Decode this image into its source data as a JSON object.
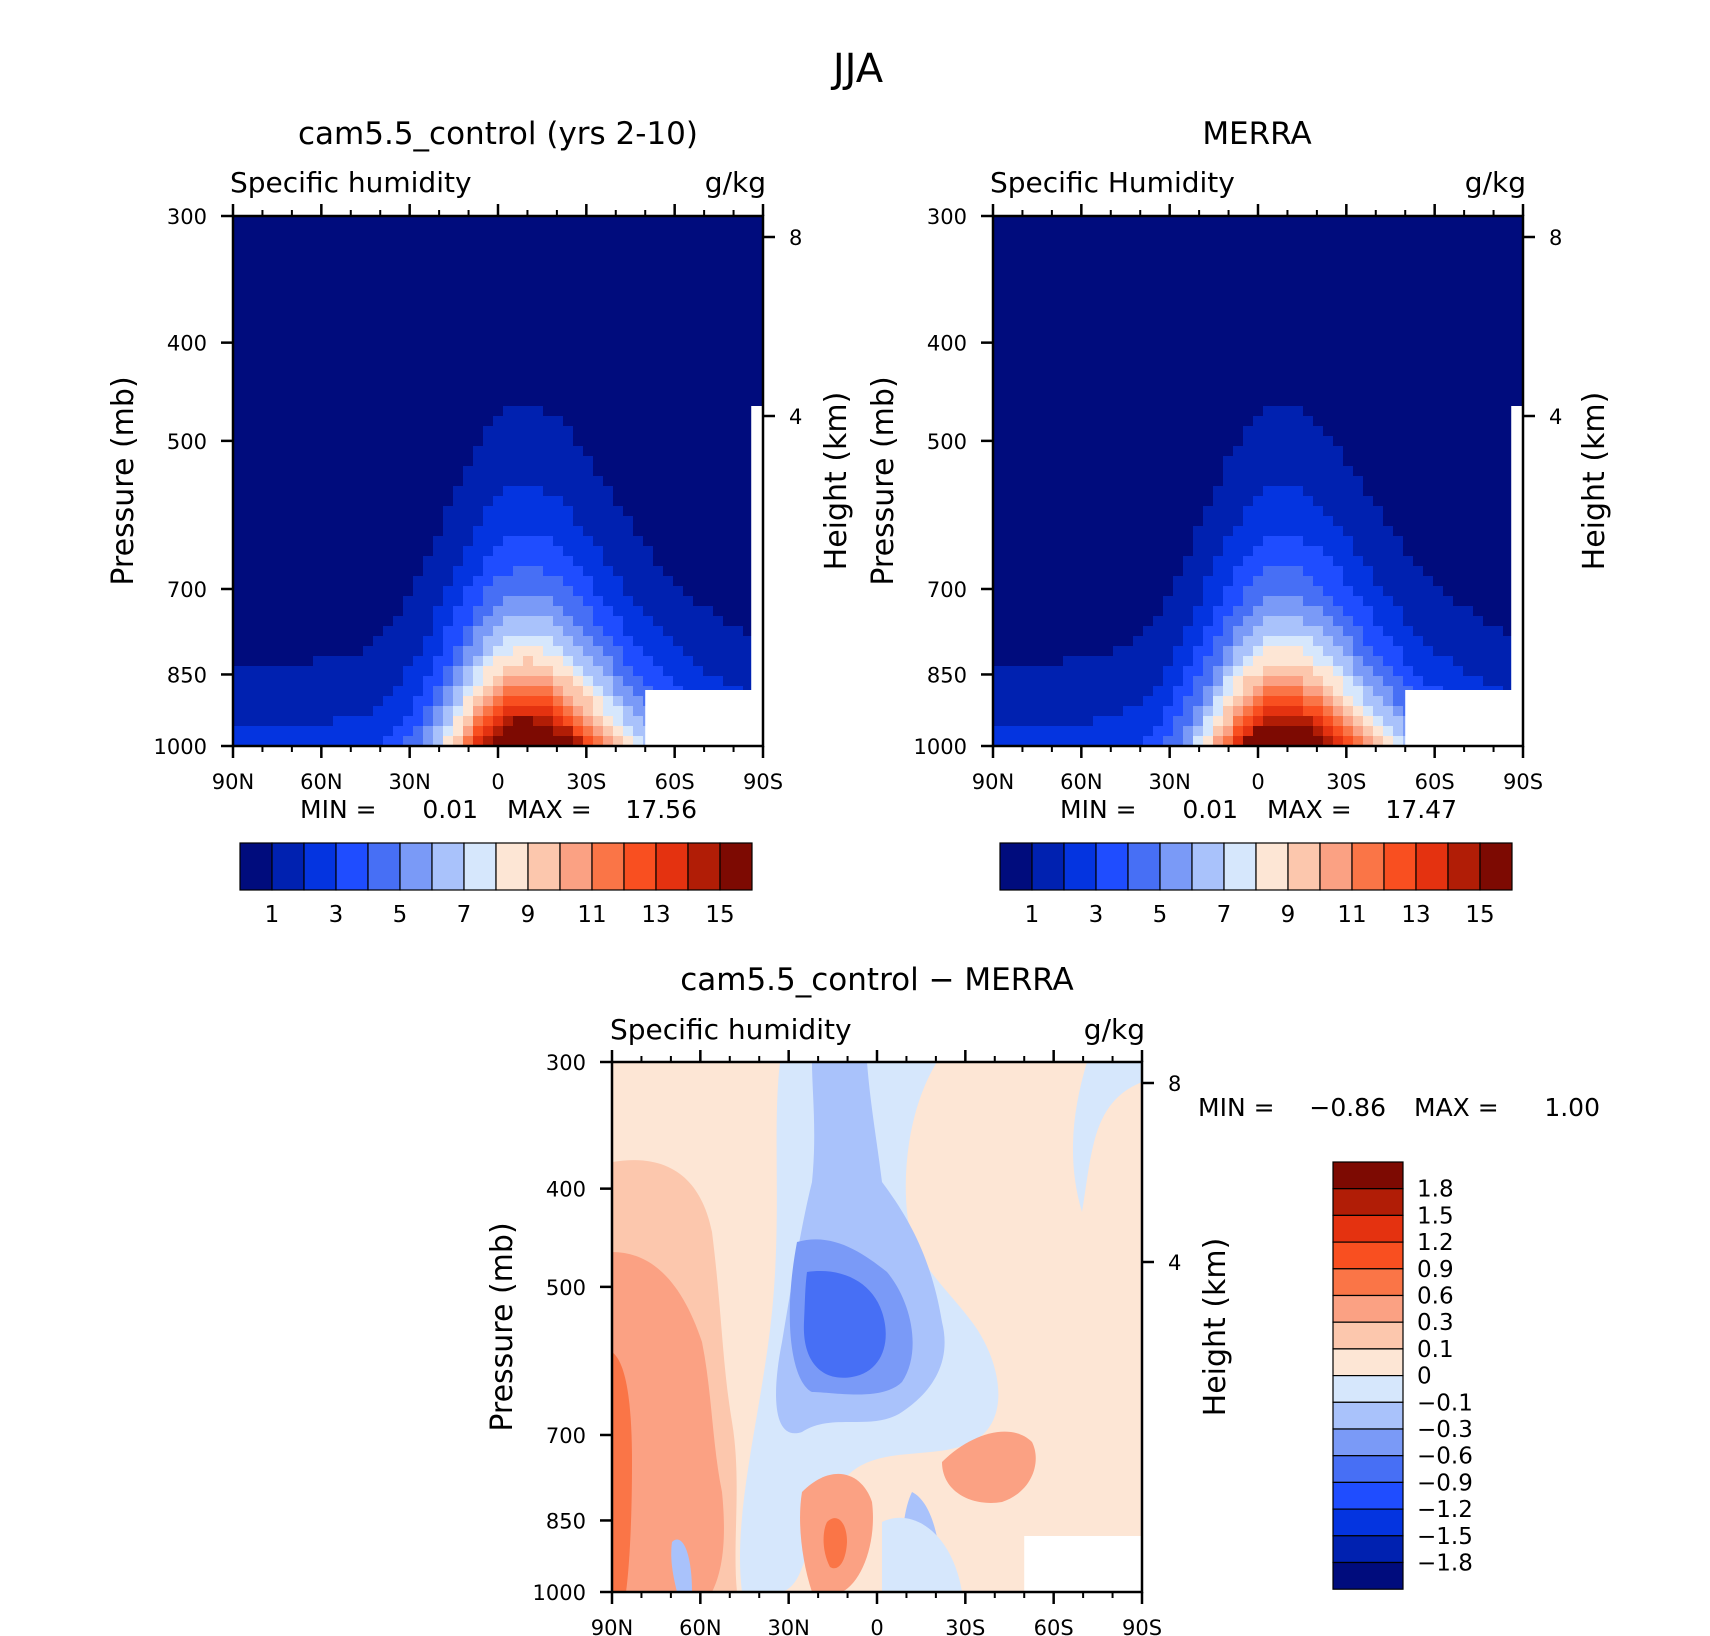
{
  "figure_title": "JJA",
  "chart_data": [
    {
      "type": "heatmap",
      "title": "cam5.5_control (yrs 2-10)",
      "left_label": "Specific humidity",
      "right_label": "g/kg",
      "ylabel": "Pressure (mb)",
      "ylabel_right": "Height (km)",
      "x_ticks": [
        "90N",
        "60N",
        "30N",
        "0",
        "30S",
        "60S",
        "90S"
      ],
      "y_ticks": [
        "300",
        "400",
        "500",
        "700",
        "850",
        "1000"
      ],
      "y_right_ticks": [
        "8",
        "4"
      ],
      "min_label": "MIN =",
      "min_value": "0.01",
      "max_label": "MAX =",
      "max_value": "17.56",
      "colorbar_ticks": [
        "1",
        "3",
        "5",
        "7",
        "9",
        "11",
        "13",
        "15"
      ],
      "levels": [
        1,
        2,
        3,
        4,
        5,
        6,
        7,
        8,
        9,
        10,
        11,
        12,
        13,
        14,
        15
      ],
      "colors": [
        "#000c7d",
        "#0021b0",
        "#0434e0",
        "#1f4dff",
        "#476ff5",
        "#7a9af7",
        "#a9c2fb",
        "#d6e7fc",
        "#fde6d5",
        "#fcc7ad",
        "#fba183",
        "#fa7547",
        "#f94f20",
        "#e43210",
        "#b11d06",
        "#7d0a02"
      ],
      "peak": 17.56,
      "peak_lat": -8
    },
    {
      "type": "heatmap",
      "title": "MERRA",
      "left_label": "Specific Humidity",
      "right_label": "g/kg",
      "ylabel": "Pressure (mb)",
      "ylabel_right": "Height (km)",
      "x_ticks": [
        "90N",
        "60N",
        "30N",
        "0",
        "30S",
        "60S",
        "90S"
      ],
      "y_ticks": [
        "300",
        "400",
        "500",
        "700",
        "850",
        "1000"
      ],
      "y_right_ticks": [
        "8",
        "4"
      ],
      "min_label": "MIN =",
      "min_value": "0.01",
      "max_label": "MAX =",
      "max_value": "17.47",
      "colorbar_ticks": [
        "1",
        "3",
        "5",
        "7",
        "9",
        "11",
        "13",
        "15"
      ],
      "levels": [
        1,
        2,
        3,
        4,
        5,
        6,
        7,
        8,
        9,
        10,
        11,
        12,
        13,
        14,
        15
      ],
      "colors": [
        "#000c7d",
        "#0021b0",
        "#0434e0",
        "#1f4dff",
        "#476ff5",
        "#7a9af7",
        "#a9c2fb",
        "#d6e7fc",
        "#fde6d5",
        "#fcc7ad",
        "#fba183",
        "#fa7547",
        "#f94f20",
        "#e43210",
        "#b11d06",
        "#7d0a02"
      ],
      "peak": 17.47,
      "peak_lat": -7
    },
    {
      "type": "heatmap",
      "title": "cam5.5_control − MERRA",
      "left_label": "Specific humidity",
      "right_label": "g/kg",
      "ylabel": "Pressure (mb)",
      "ylabel_right": "Height (km)",
      "x_ticks": [
        "90N",
        "60N",
        "30N",
        "0",
        "30S",
        "60S",
        "90S"
      ],
      "y_ticks": [
        "300",
        "400",
        "500",
        "700",
        "850",
        "1000"
      ],
      "y_right_ticks": [
        "8",
        "4"
      ],
      "min_label": "MIN =",
      "min_value": "−0.86",
      "max_label": "MAX =",
      "max_value": "1.00",
      "colorbar_ticks": [
        "1.8",
        "1.5",
        "1.2",
        "0.9",
        "0.6",
        "0.3",
        "0.1",
        "0",
        "−0.1",
        "−0.3",
        "−0.6",
        "−0.9",
        "−1.2",
        "−1.5",
        "−1.8"
      ],
      "colors_top_to_bottom": [
        "#7d0a02",
        "#b11d06",
        "#e43210",
        "#f94f20",
        "#fa7547",
        "#fba183",
        "#fcc7ad",
        "#fde6d5",
        "#d6e7fc",
        "#a9c2fb",
        "#7a9af7",
        "#476ff5",
        "#1f4dff",
        "#0434e0",
        "#0021b0",
        "#000c7d"
      ]
    }
  ]
}
